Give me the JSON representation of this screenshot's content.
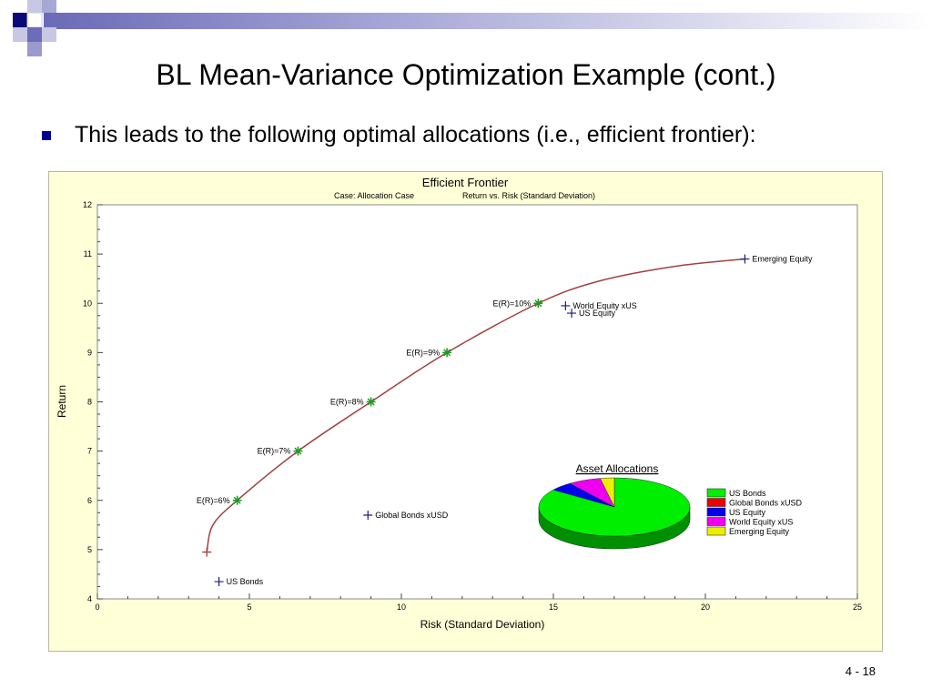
{
  "slide": {
    "title": "BL Mean-Variance Optimization Example (cont.)",
    "bullet": "This leads to the following optimal allocations (i.e., efficient frontier):",
    "page_number": "4 - 18"
  },
  "colors": {
    "accent_blue": "#000090",
    "frontier": "#a04040",
    "star": "#1f9a1f",
    "asset_marker": "#1b1b8a",
    "chart_bg": "#ffffd8"
  },
  "chart_data": [
    {
      "type": "line",
      "title": "Efficient Frontier",
      "subtitle_case": "Case: Allocation Case",
      "subtitle_metric": "Return vs. Risk (Standard Deviation)",
      "xlabel": "Risk (Standard Deviation)",
      "ylabel": "Return",
      "xlim": [
        0,
        25
      ],
      "ylim": [
        4,
        12
      ],
      "x_ticks": [
        0,
        5,
        10,
        15,
        20,
        25
      ],
      "y_ticks": [
        4,
        5,
        6,
        7,
        8,
        9,
        10,
        11,
        12
      ],
      "grid": false,
      "frontier": {
        "x": [
          3.6,
          3.8,
          4.6,
          6.6,
          9.0,
          11.5,
          14.5,
          16.5,
          19.0,
          21.3
        ],
        "y": [
          4.95,
          5.5,
          6.0,
          7.0,
          8.0,
          9.0,
          10.0,
          10.45,
          10.75,
          10.9
        ]
      },
      "target_points": [
        {
          "label": "E(R)=6%",
          "x": 4.6,
          "y": 6.0
        },
        {
          "label": "E(R)=7%",
          "x": 6.6,
          "y": 7.0
        },
        {
          "label": "E(R)=8%",
          "x": 9.0,
          "y": 8.0
        },
        {
          "label": "E(R)=9%",
          "x": 11.5,
          "y": 9.0
        },
        {
          "label": "E(R)=10%",
          "x": 14.5,
          "y": 10.0
        }
      ],
      "assets": [
        {
          "label": "US Bonds",
          "x": 4.0,
          "y": 4.35
        },
        {
          "label": "Global Bonds xUSD",
          "x": 8.9,
          "y": 5.7
        },
        {
          "label": "US Equity",
          "x": 15.6,
          "y": 9.8
        },
        {
          "label": "World Equity xUS",
          "x": 15.4,
          "y": 9.95
        },
        {
          "label": "Emerging Equity",
          "x": 21.3,
          "y": 10.9
        }
      ]
    },
    {
      "type": "pie",
      "title": "Asset Allocations",
      "labels": [
        "US Bonds",
        "Global Bonds xUSD",
        "US Equity",
        "World Equity xUS",
        "Emerging Equity"
      ],
      "values": [
        85,
        0,
        5,
        7,
        3
      ],
      "colors": [
        "#00ee00",
        "#ee0000",
        "#0000ee",
        "#ee00ee",
        "#eeee00"
      ]
    }
  ]
}
